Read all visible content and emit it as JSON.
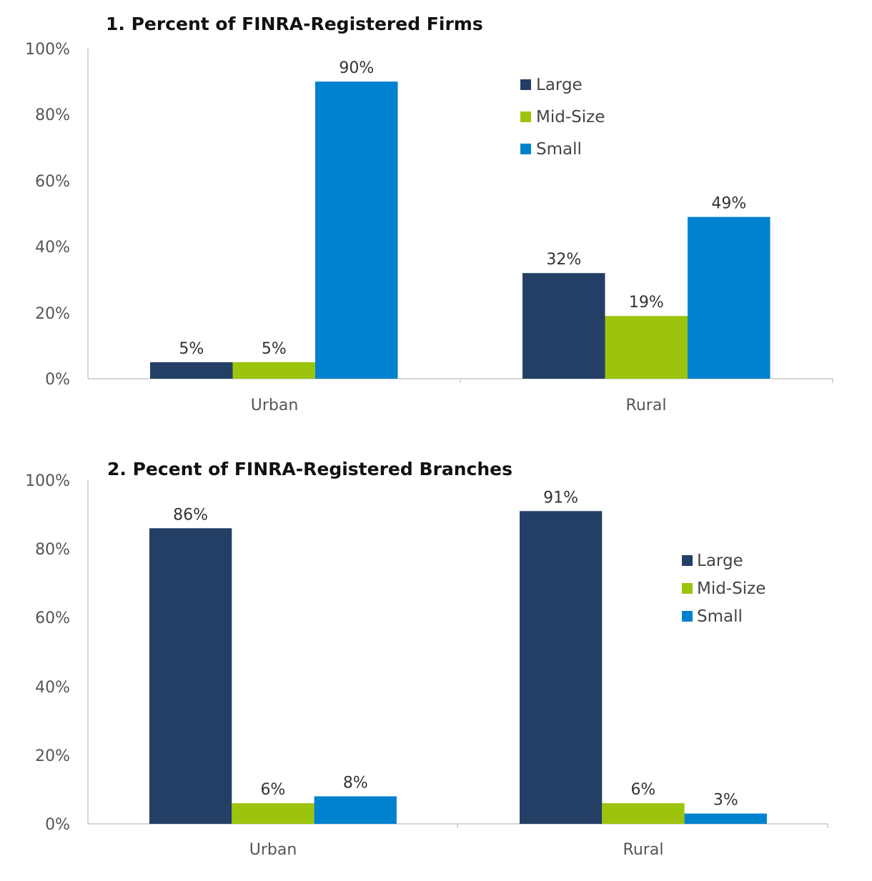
{
  "chart_data": [
    {
      "type": "bar",
      "title": "1. Percent of FINRA-Registered Firms",
      "categories": [
        "Urban",
        "Rural"
      ],
      "series": [
        {
          "name": "Large",
          "color": "#243f65",
          "values": [
            5,
            32
          ],
          "labels": [
            "5%",
            "32%"
          ]
        },
        {
          "name": "Mid-Size",
          "color": "#9dc40c",
          "values": [
            5,
            19
          ],
          "labels": [
            "5%",
            "19%"
          ]
        },
        {
          "name": "Small",
          "color": "#0082cf",
          "values": [
            90,
            49
          ],
          "labels": [
            "90%",
            "49%"
          ]
        }
      ],
      "yticks": [
        "0%",
        "20%",
        "40%",
        "60%",
        "80%",
        "100%"
      ],
      "ylim": [
        0,
        100
      ],
      "legend": "top-right"
    },
    {
      "type": "bar",
      "title": "2. Pecent of FINRA-Registered Branches",
      "categories": [
        "Urban",
        "Rural"
      ],
      "series": [
        {
          "name": "Large",
          "color": "#243f65",
          "values": [
            86,
            91
          ],
          "labels": [
            "86%",
            "91%"
          ]
        },
        {
          "name": "Mid-Size",
          "color": "#9dc40c",
          "values": [
            6,
            6
          ],
          "labels": [
            "6%",
            "6%"
          ]
        },
        {
          "name": "Small",
          "color": "#0082cf",
          "values": [
            8,
            3
          ],
          "labels": [
            "8%",
            "3%"
          ]
        }
      ],
      "yticks": [
        "0%",
        "20%",
        "40%",
        "60%",
        "80%",
        "100%"
      ],
      "ylim": [
        0,
        100
      ],
      "legend": "right"
    }
  ]
}
